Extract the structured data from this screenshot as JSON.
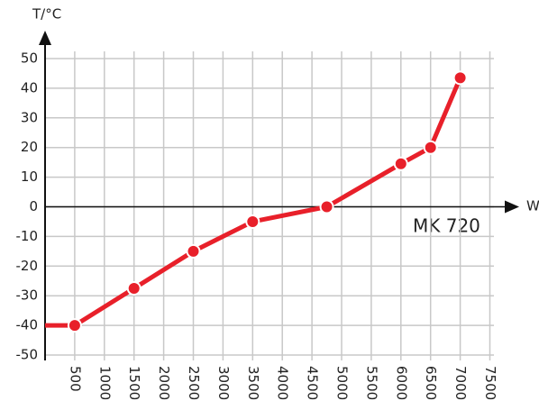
{
  "chart_data": {
    "type": "line",
    "y_label": "T/°C",
    "x_label": "W",
    "annotation": "MK 720",
    "x": [
      0,
      500,
      1500,
      2500,
      3500,
      4750,
      6000,
      6500,
      7000
    ],
    "series": [
      {
        "color": "#e8202a",
        "values": [
          -40,
          -40,
          -27.5,
          -15,
          -5,
          0,
          14.5,
          20,
          43.5
        ],
        "markers": [
          false,
          true,
          true,
          true,
          true,
          true,
          true,
          true,
          true
        ]
      }
    ],
    "xlim": [
      0,
      7500
    ],
    "xticks": [
      500,
      1000,
      1500,
      2000,
      2500,
      3000,
      3500,
      4000,
      4500,
      5000,
      5500,
      6000,
      6500,
      7000,
      7500
    ],
    "ylim": [
      -50,
      50
    ],
    "yticks": [
      -50,
      -40,
      -30,
      -20,
      -10,
      0,
      10,
      20,
      30,
      40,
      50
    ],
    "grid": true
  }
}
